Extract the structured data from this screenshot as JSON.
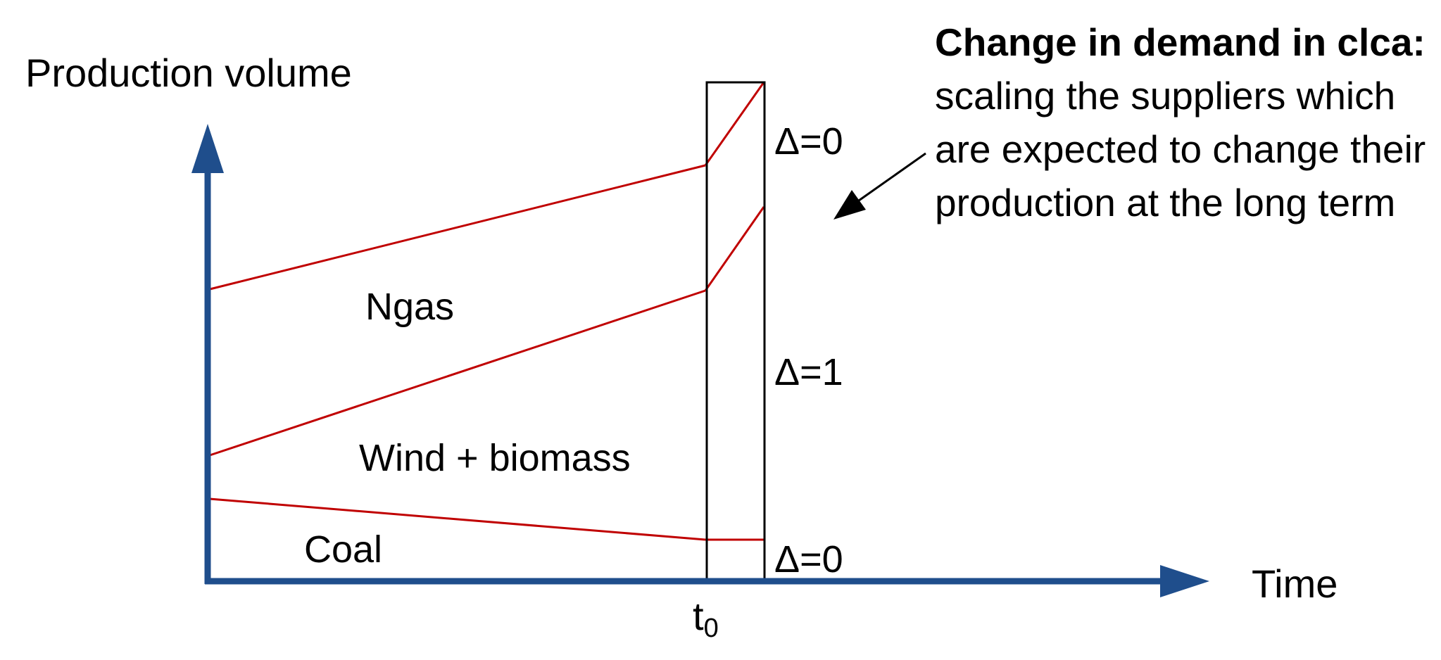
{
  "axes": {
    "y_label": "Production volume",
    "x_label": "Time"
  },
  "regions": {
    "ngas": "Ngas",
    "wind_biomass": "Wind + biomass",
    "coal": "Coal"
  },
  "deltas": {
    "top": "Δ=0",
    "middle": "Δ=1",
    "bottom": "Δ=0"
  },
  "time_marker": {
    "base": "t",
    "subscript": "0"
  },
  "note": {
    "bold": "Change in demand in clca:",
    "text": " scaling the suppliers which are expected to change their production at the long term"
  },
  "colors": {
    "axis": "#1f4e8c",
    "lines": "#c00000",
    "text": "#000000"
  }
}
